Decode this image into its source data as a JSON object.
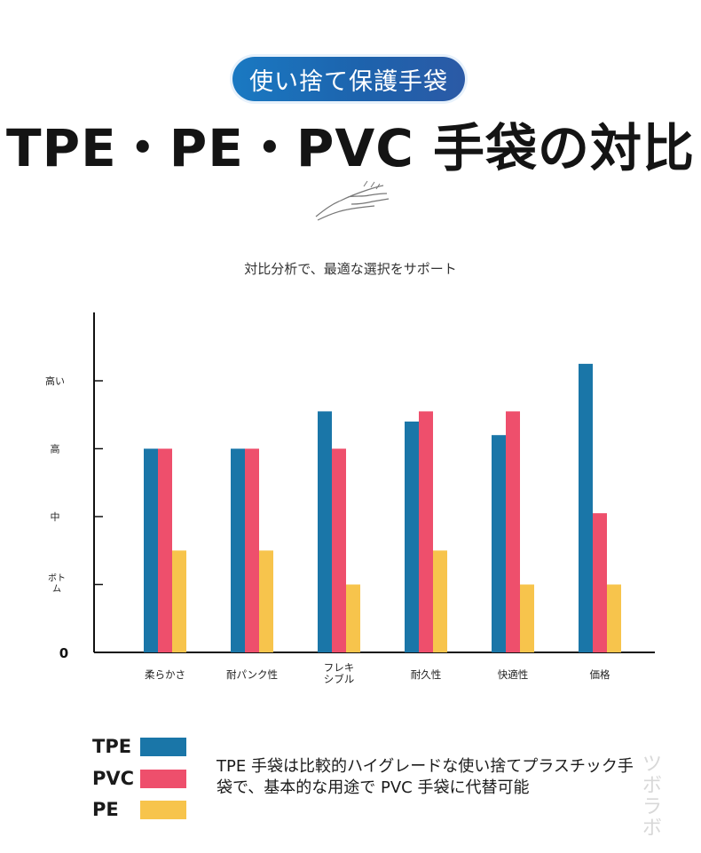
{
  "header": {
    "badge": "使い捨て保護手袋",
    "title": "TPE・PE・PVC 手袋の対比",
    "subtitle": "対比分析で、最適な選択をサポート"
  },
  "chart_data": {
    "type": "bar",
    "categories": [
      "柔らかさ",
      "耐パンク性",
      "フレキシブル",
      "耐久性",
      "快適性",
      "価格"
    ],
    "category_lines": [
      [
        "柔らかさ"
      ],
      [
        "耐パンク性"
      ],
      [
        "フレキ",
        "シブル"
      ],
      [
        "耐久性"
      ],
      [
        "快適性"
      ],
      [
        "価格"
      ]
    ],
    "y_ticks": [
      {
        "value": 0,
        "label": "0"
      },
      {
        "value": 1,
        "label": "ボトム"
      },
      {
        "value": 2,
        "label": "中"
      },
      {
        "value": 3,
        "label": "高"
      },
      {
        "value": 4,
        "label": "高い"
      }
    ],
    "ylim": [
      0,
      5
    ],
    "series": [
      {
        "name": "TPE",
        "color": "#1a76a8",
        "values": [
          3.0,
          3.0,
          3.55,
          3.4,
          3.2,
          4.25
        ]
      },
      {
        "name": "PVC",
        "color": "#ee4f6c",
        "values": [
          3.0,
          3.0,
          3.0,
          3.55,
          3.55,
          2.05
        ]
      },
      {
        "name": "PE",
        "color": "#f7c44c",
        "values": [
          1.5,
          1.5,
          1.0,
          1.5,
          1.0,
          1.0
        ]
      }
    ]
  },
  "legend": {
    "items": [
      {
        "label": "TPE",
        "color": "#1a76a8"
      },
      {
        "label": "PVC",
        "color": "#ee4f6c"
      },
      {
        "label": "PE",
        "color": "#f7c44c"
      }
    ]
  },
  "note": "TPE 手袋は比較的ハイグレードな使い捨てプラスチック手袋で、基本的な用途で PVC 手袋に代替可能",
  "watermark": "ツボラボ"
}
